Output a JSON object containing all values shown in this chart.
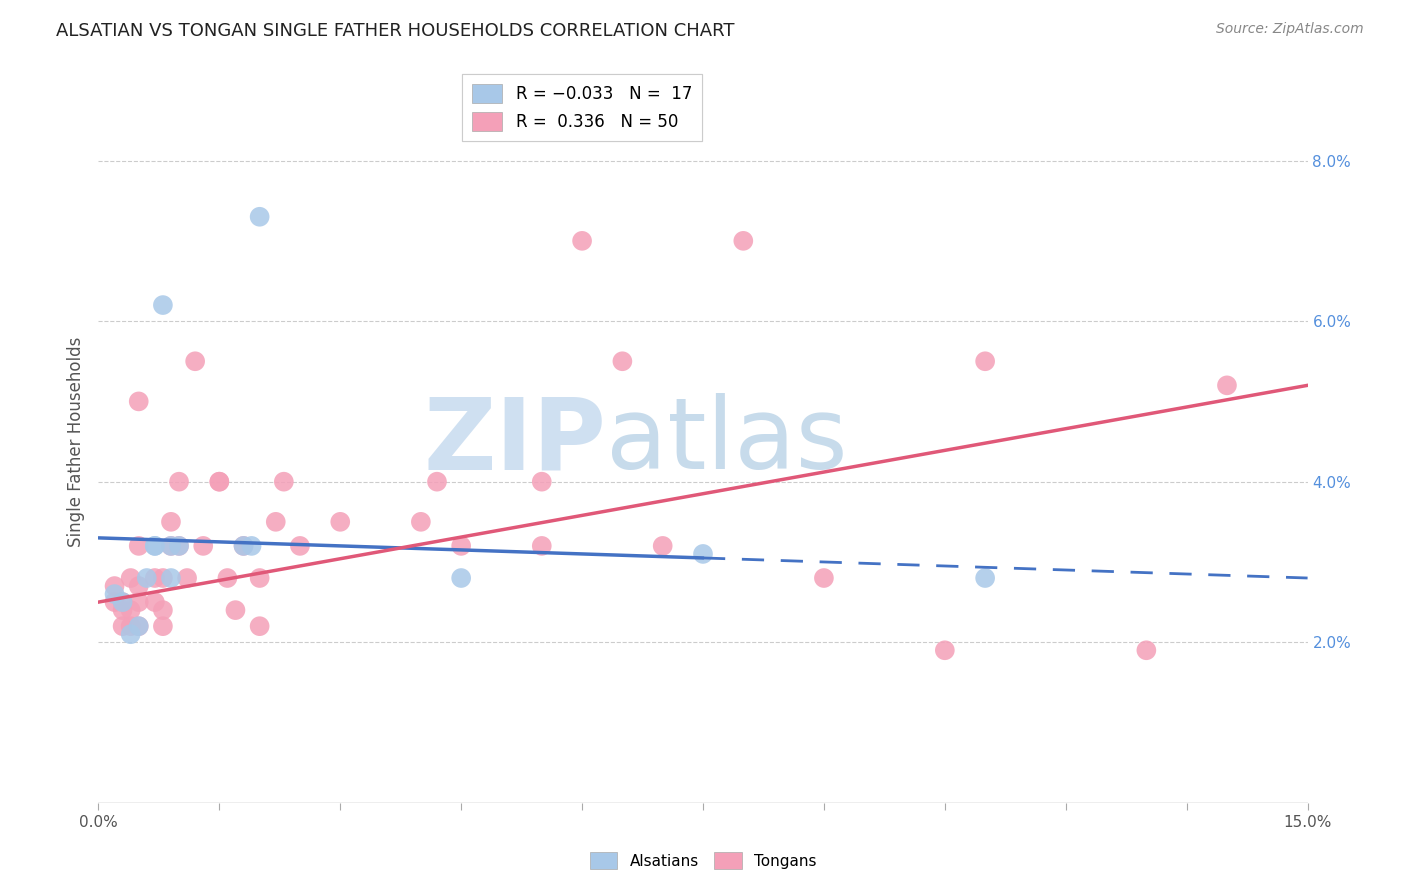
{
  "title": "ALSATIAN VS TONGAN SINGLE FATHER HOUSEHOLDS CORRELATION CHART",
  "source": "Source: ZipAtlas.com",
  "ylabel": "Single Father Households",
  "right_yticks": [
    "2.0%",
    "4.0%",
    "6.0%",
    "8.0%"
  ],
  "right_ytick_vals": [
    0.02,
    0.04,
    0.06,
    0.08
  ],
  "xlim": [
    0.0,
    0.15
  ],
  "ylim": [
    0.0,
    0.09
  ],
  "alsatian_color": "#a8c8e8",
  "tongan_color": "#f4a0b8",
  "alsatian_line_color": "#4472c4",
  "tongan_line_color": "#e05878",
  "zip_color": "#b0cce8",
  "atlas_color": "#90b8d8",
  "alsatian_points": [
    [
      0.002,
      0.026
    ],
    [
      0.003,
      0.025
    ],
    [
      0.004,
      0.021
    ],
    [
      0.005,
      0.022
    ],
    [
      0.006,
      0.028
    ],
    [
      0.007,
      0.032
    ],
    [
      0.007,
      0.032
    ],
    [
      0.008,
      0.062
    ],
    [
      0.009,
      0.028
    ],
    [
      0.009,
      0.032
    ],
    [
      0.01,
      0.032
    ],
    [
      0.018,
      0.032
    ],
    [
      0.019,
      0.032
    ],
    [
      0.02,
      0.073
    ],
    [
      0.045,
      0.028
    ],
    [
      0.075,
      0.031
    ],
    [
      0.11,
      0.028
    ]
  ],
  "tongan_points": [
    [
      0.002,
      0.025
    ],
    [
      0.002,
      0.027
    ],
    [
      0.003,
      0.022
    ],
    [
      0.003,
      0.024
    ],
    [
      0.003,
      0.025
    ],
    [
      0.004,
      0.022
    ],
    [
      0.004,
      0.024
    ],
    [
      0.004,
      0.028
    ],
    [
      0.005,
      0.022
    ],
    [
      0.005,
      0.025
    ],
    [
      0.005,
      0.027
    ],
    [
      0.005,
      0.032
    ],
    [
      0.005,
      0.05
    ],
    [
      0.007,
      0.025
    ],
    [
      0.007,
      0.028
    ],
    [
      0.008,
      0.022
    ],
    [
      0.008,
      0.024
    ],
    [
      0.008,
      0.028
    ],
    [
      0.009,
      0.032
    ],
    [
      0.009,
      0.035
    ],
    [
      0.01,
      0.032
    ],
    [
      0.01,
      0.04
    ],
    [
      0.011,
      0.028
    ],
    [
      0.012,
      0.055
    ],
    [
      0.013,
      0.032
    ],
    [
      0.015,
      0.04
    ],
    [
      0.015,
      0.04
    ],
    [
      0.016,
      0.028
    ],
    [
      0.017,
      0.024
    ],
    [
      0.018,
      0.032
    ],
    [
      0.02,
      0.022
    ],
    [
      0.02,
      0.028
    ],
    [
      0.022,
      0.035
    ],
    [
      0.023,
      0.04
    ],
    [
      0.025,
      0.032
    ],
    [
      0.03,
      0.035
    ],
    [
      0.04,
      0.035
    ],
    [
      0.042,
      0.04
    ],
    [
      0.045,
      0.032
    ],
    [
      0.055,
      0.04
    ],
    [
      0.055,
      0.032
    ],
    [
      0.06,
      0.07
    ],
    [
      0.065,
      0.055
    ],
    [
      0.07,
      0.032
    ],
    [
      0.08,
      0.07
    ],
    [
      0.09,
      0.028
    ],
    [
      0.105,
      0.019
    ],
    [
      0.11,
      0.055
    ],
    [
      0.13,
      0.019
    ],
    [
      0.14,
      0.052
    ]
  ]
}
